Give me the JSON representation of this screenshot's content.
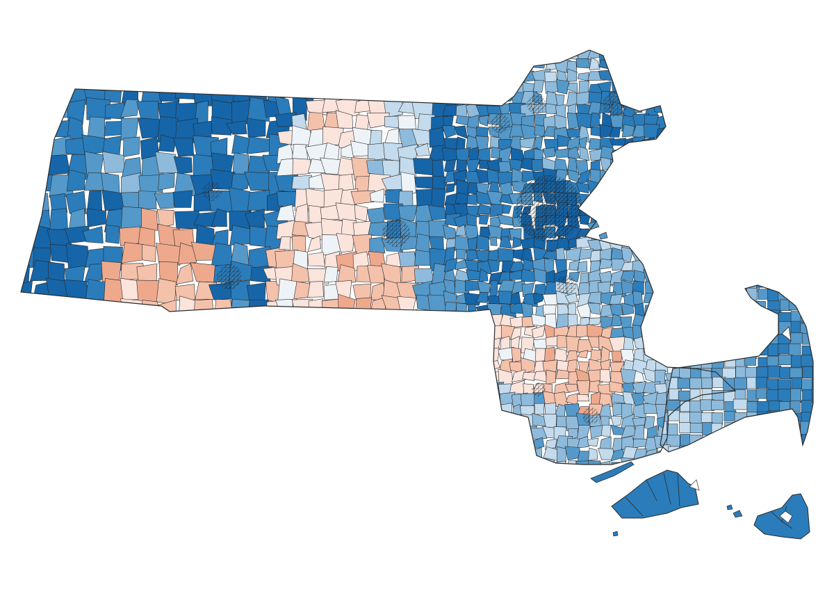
{
  "map": {
    "region": "Massachusetts",
    "unit_type": "precinct",
    "scale": "diverging",
    "colors": {
      "boundary": "#2a2a2a",
      "background": "#ffffff",
      "palette": [
        "#1565a8",
        "#2b7cba",
        "#5499c9",
        "#8ebbdc",
        "#c3dbec",
        "#eef3f8",
        "#fbe4dc",
        "#f4c1ab",
        "#eea98d"
      ]
    },
    "classes": [
      {
        "name": "blue-5",
        "color": "#1565a8"
      },
      {
        "name": "blue-4",
        "color": "#2b7cba"
      },
      {
        "name": "blue-3",
        "color": "#5499c9"
      },
      {
        "name": "blue-2",
        "color": "#8ebbdc"
      },
      {
        "name": "blue-1",
        "color": "#c3dbec"
      },
      {
        "name": "neutral",
        "color": "#eef3f8"
      },
      {
        "name": "red-1",
        "color": "#fbe4dc"
      },
      {
        "name": "red-2",
        "color": "#f4c1ab"
      },
      {
        "name": "red-3",
        "color": "#eea98d"
      }
    ]
  }
}
